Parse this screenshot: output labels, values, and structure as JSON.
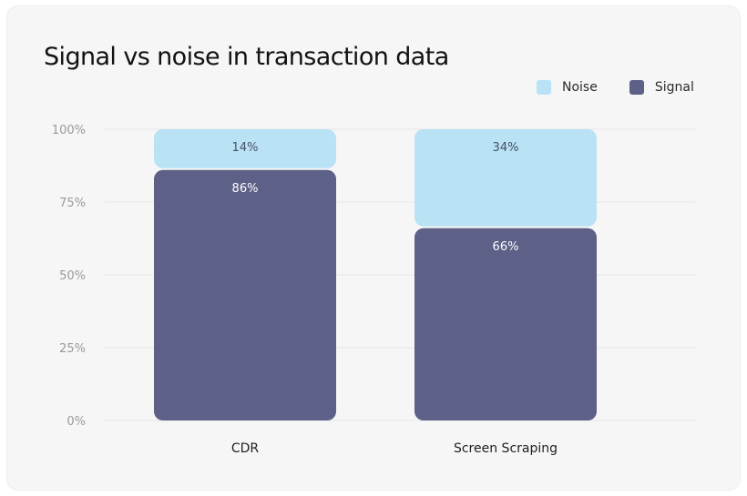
{
  "chart_data": {
    "type": "bar",
    "stacked": true,
    "title": "Signal vs noise in transaction data",
    "categories": [
      "CDR",
      "Screen Scraping"
    ],
    "series": [
      {
        "name": "Signal",
        "values": [
          86,
          66
        ],
        "labels": [
          "86%",
          "66%"
        ],
        "color": "#5d6087",
        "label_color": "#ffffff"
      },
      {
        "name": "Noise",
        "values": [
          14,
          34
        ],
        "labels": [
          "14%",
          "34%"
        ],
        "color": "#b9e2f5",
        "label_color": "#4a4f66"
      }
    ],
    "legend_order": [
      "Noise",
      "Signal"
    ],
    "yticks": [
      {
        "value": 0,
        "label": "0%"
      },
      {
        "value": 25,
        "label": "25%"
      },
      {
        "value": 50,
        "label": "50%"
      },
      {
        "value": 75,
        "label": "75%"
      },
      {
        "value": 100,
        "label": "100%"
      }
    ],
    "ylim": [
      0,
      100
    ],
    "grid": true,
    "legend_position": "top-right"
  }
}
